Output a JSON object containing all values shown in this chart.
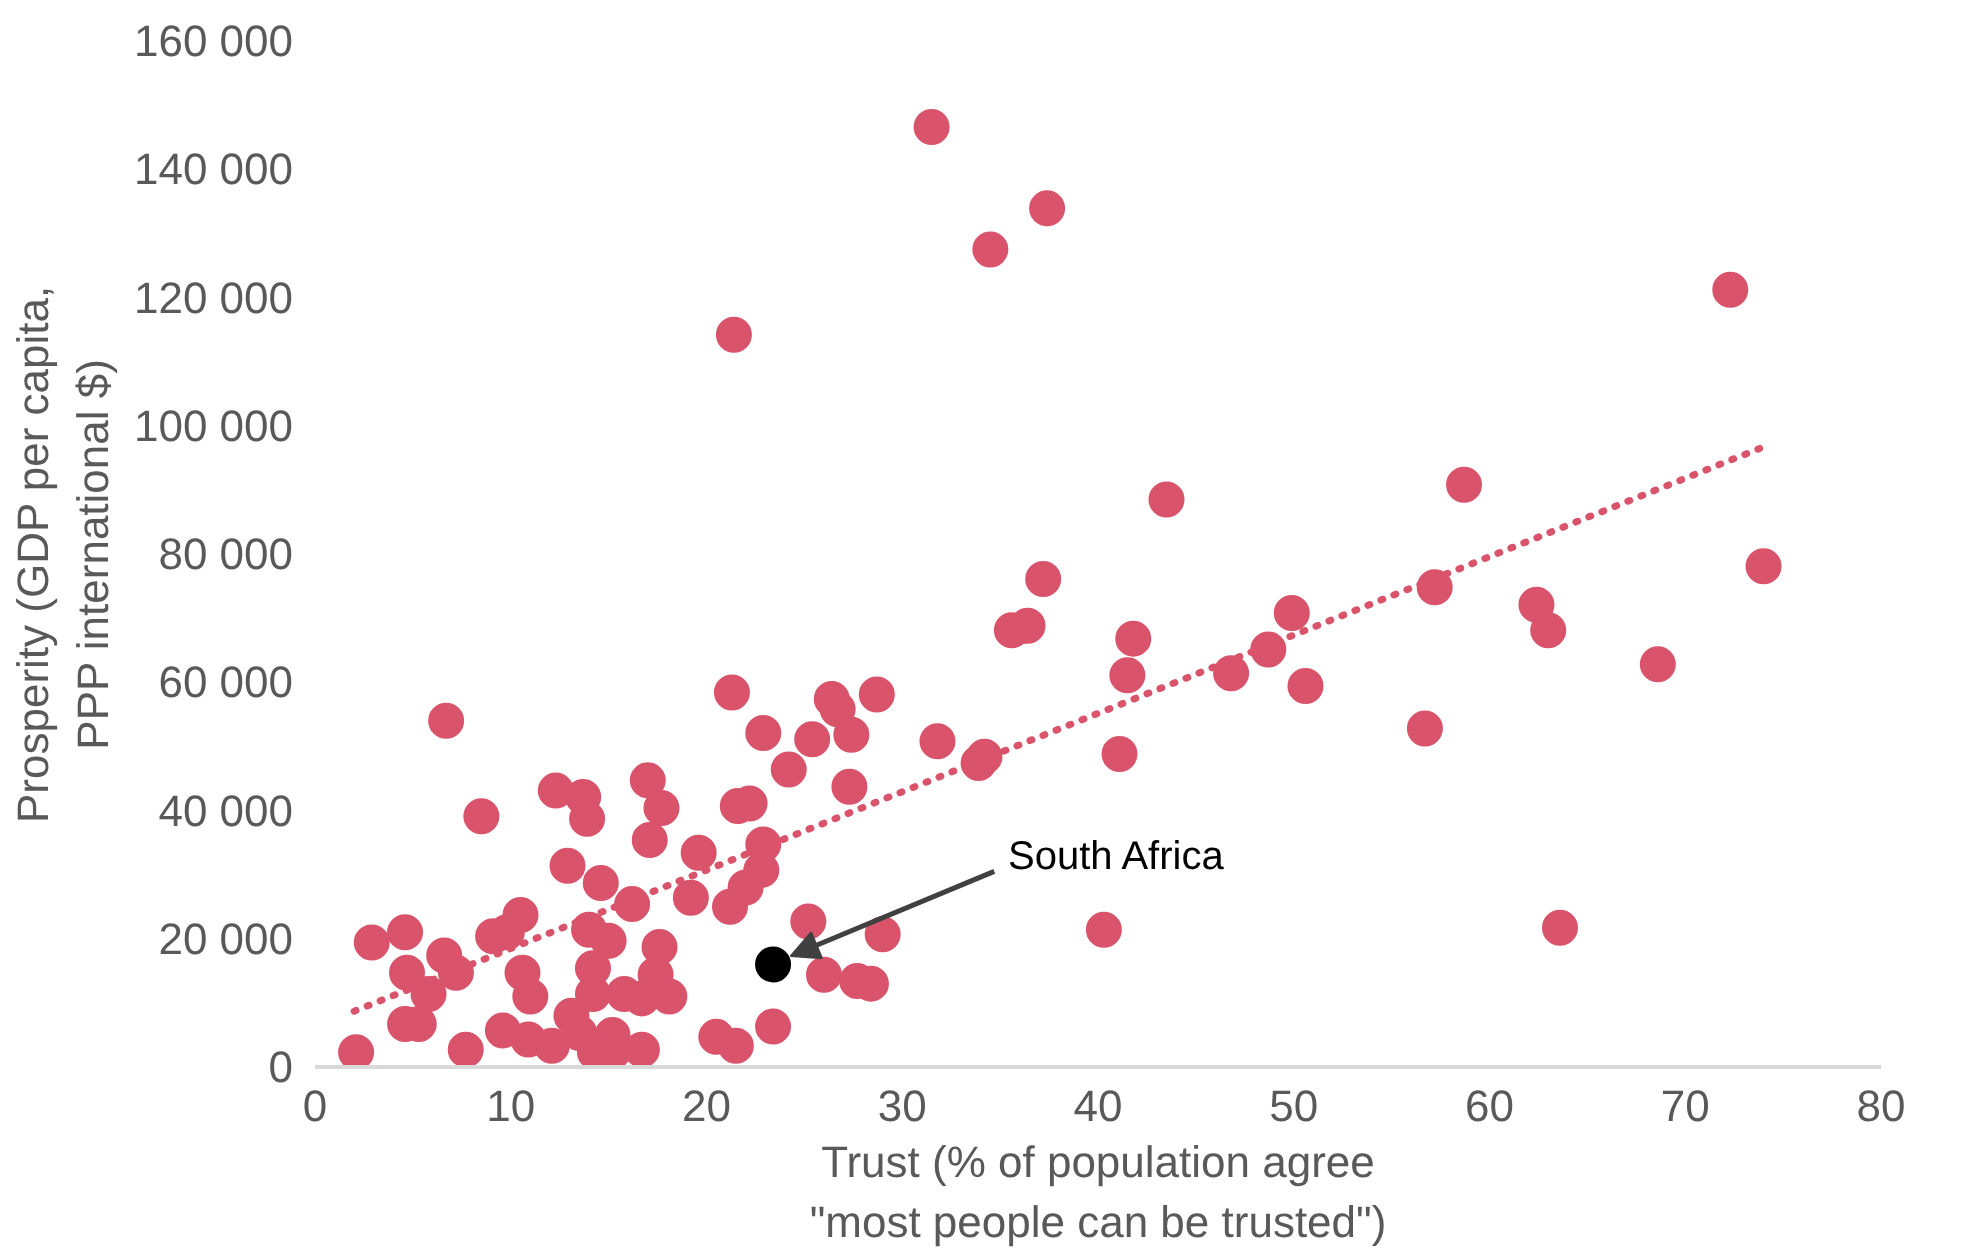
{
  "chart_data": {
    "type": "scatter",
    "xlabel": "Trust (% of population agree\n\"most people can be trusted\")",
    "ylabel": "Prosperity (GDP per capita,\nPPP international $)",
    "xlim": [
      0,
      80
    ],
    "ylim": [
      0,
      160000
    ],
    "xticks": [
      0,
      10,
      20,
      30,
      40,
      50,
      60,
      70,
      80
    ],
    "yticks": [
      {
        "value": 0,
        "label": "0"
      },
      {
        "value": 20000,
        "label": "20 000"
      },
      {
        "value": 40000,
        "label": "40 000"
      },
      {
        "value": 60000,
        "label": "60 000"
      },
      {
        "value": 80000,
        "label": "80 000"
      },
      {
        "value": 100000,
        "label": "100 000"
      },
      {
        "value": 120000,
        "label": "120 000"
      },
      {
        "value": 140000,
        "label": "140 000"
      },
      {
        "value": 160000,
        "label": "160 000"
      }
    ],
    "grid": false,
    "marker": "circle",
    "series": [
      {
        "color": "#d9536b",
        "x": [
          2.1,
          2.9,
          4.6,
          4.7,
          4.6,
          5.3,
          5.8,
          6.7,
          6.6,
          7.2,
          7.7,
          8.5,
          9.1,
          9.6,
          9.8,
          10.5,
          10.6,
          11.0,
          10.9,
          12.1,
          12.3,
          12.9,
          13.1,
          13.5,
          13.7,
          13.9,
          14.0,
          14.2,
          14.2,
          14.3,
          14.6,
          15.0,
          15.2,
          15.2,
          15.8,
          16.2,
          16.7,
          16.7,
          17.0,
          17.1,
          17.4,
          17.6,
          17.7,
          18.1,
          19.6,
          19.2,
          20.5,
          21.2,
          21.3,
          21.4,
          21.5,
          21.6,
          22.2,
          22.0,
          22.8,
          22.9,
          22.9,
          23.4,
          24.2,
          25.2,
          25.4,
          26.0,
          26.4,
          26.7,
          27.4,
          27.3,
          27.7,
          28.4,
          28.7,
          29.0,
          31.5,
          31.8,
          33.9,
          34.2,
          34.5,
          35.6,
          36.4,
          37.4,
          37.2,
          40.3,
          41.1,
          41.5,
          41.8,
          43.5,
          46.8,
          48.7,
          49.9,
          50.6,
          56.7,
          57.2,
          58.7,
          62.4,
          63.0,
          63.6,
          68.6,
          72.3,
          74.0
        ],
        "values": [
          2300,
          19400,
          21000,
          14700,
          6700,
          6700,
          11400,
          54000,
          17400,
          14700,
          2700,
          39100,
          20400,
          5700,
          21000,
          23700,
          14700,
          11000,
          4300,
          3300,
          43100,
          31400,
          8000,
          5300,
          42100,
          38700,
          21400,
          15400,
          11400,
          2300,
          28700,
          19700,
          5000,
          2300,
          11400,
          25400,
          10700,
          2700,
          44700,
          35400,
          14400,
          18700,
          40400,
          11000,
          33400,
          26400,
          4700,
          25000,
          58400,
          114200,
          3300,
          40700,
          41100,
          28000,
          30700,
          34700,
          52100,
          6300,
          46400,
          22700,
          51100,
          14400,
          57400,
          55800,
          51800,
          43700,
          13400,
          13000,
          58100,
          20700,
          146600,
          50800,
          47400,
          48400,
          127500,
          68100,
          68800,
          133900,
          76100,
          21400,
          48800,
          61100,
          66800,
          88500,
          61400,
          65100,
          70800,
          59400,
          52800,
          74800,
          90800,
          72100,
          68100,
          21700,
          62800,
          121200,
          78100
        ]
      },
      {
        "type": "line",
        "color": "#d9536b",
        "line_style": "dotted",
        "marker": "none",
        "x": [
          2,
          74
        ],
        "values": [
          8700,
          96700
        ]
      },
      {
        "name": "South Africa",
        "color": "#000000",
        "x": [
          23.4
        ],
        "values": [
          16000
        ]
      }
    ]
  }
}
